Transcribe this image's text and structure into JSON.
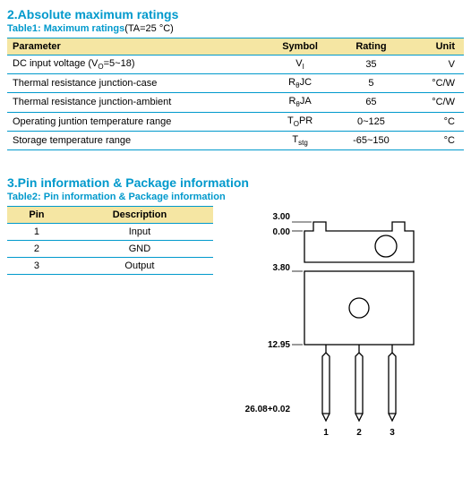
{
  "section2": {
    "title": "2.Absolute maximum ratings",
    "table_label": "Table1:   Maximum ratings",
    "table_cond": "(TA=25 °C)",
    "headers": {
      "param": "Parameter",
      "symbol": "Symbol",
      "rating": "Rating",
      "unit": "Unit"
    },
    "rows": [
      {
        "param_html": "DC input voltage (V<sub>O</sub>=5~18)",
        "symbol_html": "V<sub>I</sub>",
        "rating": "35",
        "unit": "V"
      },
      {
        "param_html": "Thermal resistance junction-case",
        "symbol_html": "R<sub>θ</sub>JC",
        "rating": "5",
        "unit": "°C/W"
      },
      {
        "param_html": "Thermal resistance junction-ambient",
        "symbol_html": "R<sub>θ</sub>JA",
        "rating": "65",
        "unit": "°C/W"
      },
      {
        "param_html": "Operating juntion temperature range",
        "symbol_html": "T<sub>O</sub>PR",
        "rating": "0~125",
        "unit": "°C"
      },
      {
        "param_html": "Storage temperature range",
        "symbol_html": "T<sub>stg</sub>",
        "rating": "-65~150",
        "unit": "°C"
      }
    ]
  },
  "section3": {
    "title": "3.Pin information & Package information",
    "table_label": "Table2:   Pin information & Package information",
    "headers": {
      "pin": "Pin",
      "desc": "Description"
    },
    "rows": [
      {
        "pin": "1",
        "desc": "Input"
      },
      {
        "pin": "2",
        "desc": "GND"
      },
      {
        "pin": "3",
        "desc": "Output"
      }
    ]
  },
  "package": {
    "dims": {
      "d1": "3.00",
      "d2": "0.00",
      "d3": "3.80",
      "d4": "12.95",
      "d5": "26.08+0.02"
    },
    "pins": {
      "p1": "1",
      "p2": "2",
      "p3": "3"
    },
    "style": {
      "stroke": "#000000",
      "stroke_width": 1.3,
      "fill": "none",
      "bg": "#ffffff"
    }
  },
  "colors": {
    "accent": "#0099cc",
    "header_bg": "#f5e6a3",
    "text": "#000000"
  }
}
